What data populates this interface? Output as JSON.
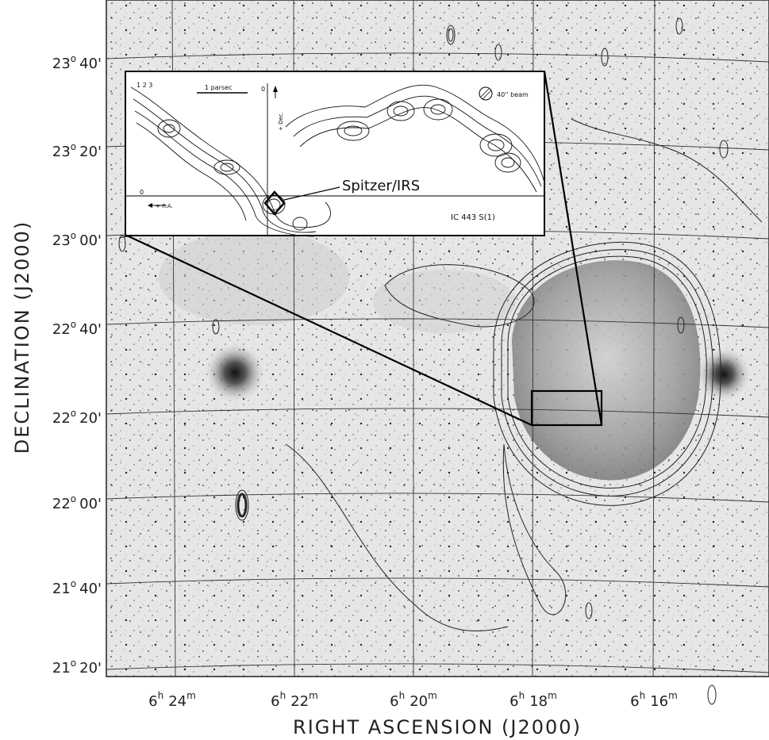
{
  "axes": {
    "x_title": "RIGHT ASCENSION (J2000)",
    "y_title": "DECLINATION (J2000)"
  },
  "dec_ticks": [
    {
      "deg": "23",
      "min": "40'"
    },
    {
      "deg": "23",
      "min": "20'"
    },
    {
      "deg": "23",
      "min": "00'"
    },
    {
      "deg": "22",
      "min": "40'"
    },
    {
      "deg": "22",
      "min": "20'"
    },
    {
      "deg": "22",
      "min": "00'"
    },
    {
      "deg": "21",
      "min": "40'"
    },
    {
      "deg": "21",
      "min": "20'"
    }
  ],
  "ra_ticks": [
    {
      "h": "6",
      "m": "24"
    },
    {
      "h": "6",
      "m": "22"
    },
    {
      "h": "6",
      "m": "20"
    },
    {
      "h": "6",
      "m": "18"
    },
    {
      "h": "6",
      "m": "16"
    }
  ],
  "units": {
    "deg": "o",
    "hour": "h",
    "minute": "m"
  },
  "inset": {
    "scale_label": "1 parsec",
    "beam_label": "40'' beam",
    "callout_label": "Spitzer/IRS",
    "object_label": "IC 443 S(1)",
    "dec_axis_label": "+ Dec.",
    "ra_axis_label": "+ R.A.",
    "origin_x": "0",
    "origin_y": "0",
    "levels": "1 2 3"
  }
}
